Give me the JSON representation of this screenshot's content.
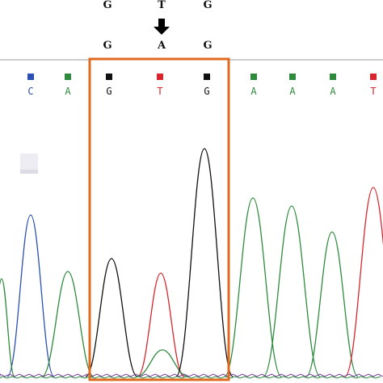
{
  "figure": {
    "reference_sequence": [
      "G",
      "T",
      "G"
    ],
    "mutant_sequence": [
      "G",
      "A",
      "G"
    ],
    "mutation_arrow_icon": "arrow-down-icon",
    "base_calls": [
      {
        "base": "C",
        "color": "#2b4fb3"
      },
      {
        "base": "A",
        "color": "#2e8b3e"
      },
      {
        "base": "G",
        "color": "#111111"
      },
      {
        "base": "T",
        "color": "#d8262e"
      },
      {
        "base": "G",
        "color": "#111111"
      },
      {
        "base": "A",
        "color": "#2e8b3e"
      },
      {
        "base": "A",
        "color": "#2e8b3e"
      },
      {
        "base": "A",
        "color": "#2e8b3e"
      },
      {
        "base": "T",
        "color": "#d8262e"
      }
    ],
    "colors": {
      "A": "#2e8b3e",
      "C": "#2b4fb3",
      "G": "#111111",
      "T": "#d8262e",
      "highlight_box": "#e06a1f"
    }
  }
}
